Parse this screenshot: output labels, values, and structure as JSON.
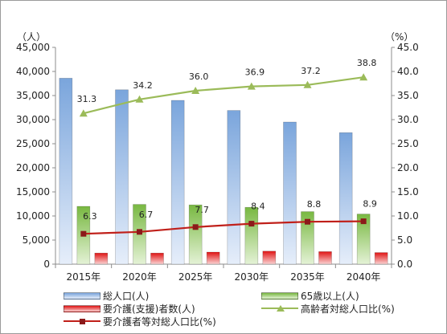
{
  "chart_data": {
    "type": "bar+line",
    "categories": [
      "2015年",
      "2020年",
      "2025年",
      "2030年",
      "2035年",
      "2040年"
    ],
    "left_axis": {
      "unit_label": "（人）",
      "ylim": [
        0,
        45000
      ],
      "tick_step": 5000,
      "tick_labels": [
        "0",
        "5,000",
        "10,000",
        "15,000",
        "20,000",
        "25,000",
        "30,000",
        "35,000",
        "40,000",
        "45,000"
      ]
    },
    "right_axis": {
      "unit_label": "（%）",
      "ylim": [
        0,
        45
      ],
      "tick_step": 5,
      "tick_labels": [
        "0.0",
        "5.0",
        "10.0",
        "15.0",
        "20.0",
        "25.0",
        "30.0",
        "35.0",
        "40.0",
        "45.0"
      ]
    },
    "bar_series": [
      {
        "name": "総人口(人)",
        "color": "#8eb4e3",
        "values": [
          38600,
          36200,
          34000,
          31900,
          29500,
          27300
        ]
      },
      {
        "name": "65歳以上(人)",
        "color": "#92d050",
        "values": [
          12000,
          12400,
          12300,
          11800,
          10900,
          10400
        ]
      },
      {
        "name": "要介護(支援)者数(人)",
        "color": "#ff3333",
        "values": [
          2300,
          2300,
          2500,
          2700,
          2600,
          2400
        ]
      }
    ],
    "line_series": [
      {
        "name": "高齢者対総人口比(%)",
        "color": "#9bbb59",
        "marker": "triangle",
        "values": [
          31.3,
          34.2,
          36.0,
          36.9,
          37.2,
          38.8
        ],
        "labels": [
          "31.3",
          "34.2",
          "36.0",
          "36.9",
          "37.2",
          "38.8"
        ]
      },
      {
        "name": "要介護者等対総人口比(%)",
        "color": "#c0201a",
        "marker": "square",
        "values": [
          6.3,
          6.7,
          7.7,
          8.4,
          8.8,
          8.9
        ],
        "labels": [
          "6.3",
          "6.7",
          "7.7",
          "8.4",
          "8.8",
          "8.9"
        ]
      }
    ],
    "grid": false,
    "legend_position": "bottom"
  }
}
